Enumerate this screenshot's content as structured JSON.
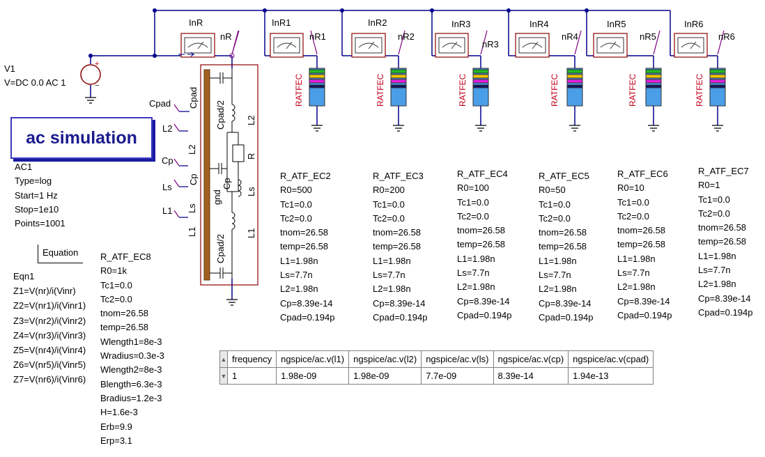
{
  "source": {
    "name": "V1",
    "value": "V=DC 0.0 AC 1"
  },
  "simulation": {
    "title": "ac simulation",
    "name": "AC1",
    "type": "Type=log",
    "start": "Start=1 Hz",
    "stop": "Stop=1e10",
    "points": "Points=1001"
  },
  "equation": {
    "header": "Equation",
    "name": "Eqn1",
    "lines": [
      "Z1=V(nr)/i(Vinr)",
      "Z2=V(nr1)/i(Vinr1)",
      "Z3=V(nr2)/i(Vinr2)",
      "Z4=V(nr3)/i(Vinr3)",
      "Z5=V(nr4)/i(Vinr4)",
      "Z6=V(nr5)/i(Vinr5)",
      "Z7=V(nr6)/i(Vinr6)"
    ]
  },
  "ammeters": [
    "InR",
    "InR1",
    "InR2",
    "InR3",
    "InR4",
    "InR5",
    "InR6"
  ],
  "nodes": [
    "nR",
    "nR1",
    "nR2",
    "nR3",
    "nR4",
    "nR5",
    "nR6"
  ],
  "resistor_label": "RATFEC",
  "model_labels": {
    "cpad_ext": "Cpad",
    "l2_ext": "L2",
    "cp_ext": "Cp",
    "ls_ext": "Ls",
    "l1_ext": "L1",
    "cpad_in": "Cpad",
    "l2_in": "L2",
    "cp_in": "Cp",
    "ls_in": "Ls",
    "l1_in": "L1",
    "cpad2_top": "Cpad/2",
    "l2_right": "L2",
    "r_right": "R",
    "cp_mid": "Cp",
    "ls_right": "Ls",
    "gnd": "gnd",
    "l1_right": "L1",
    "cpad2_bot": "Cpad/2"
  },
  "ec8": {
    "name": "R_ATF_EC8",
    "params": [
      "R0=1k",
      "Tc1=0.0",
      "Tc2=0.0",
      "tnom=26.58",
      "temp=26.58",
      "Wlength1=8e-3",
      "Wradius=0.3e-3",
      "Wlength2=8e-3",
      "Blength=6.3e-3",
      "Bradius=1.2e-3",
      "H=1.6e-3",
      "Erb=9.9",
      "Erp=3.1"
    ]
  },
  "resistor_blocks": [
    {
      "name": "R_ATF_EC2",
      "params": [
        "R0=500",
        "Tc1=0.0",
        "Tc2=0.0",
        "tnom=26.58",
        "temp=26.58",
        "L1=1.98n",
        "Ls=7.7n",
        "L2=1.98n",
        "Cp=8.39e-14",
        "Cpad=0.194p"
      ]
    },
    {
      "name": "R_ATF_EC3",
      "params": [
        "R0=200",
        "Tc1=0.0",
        "Tc2=0.0",
        "tnom=26.58",
        "temp=26.58",
        "L1=1.98n",
        "Ls=7.7n",
        "L2=1.98n",
        "Cp=8.39e-14",
        "Cpad=0.194p"
      ]
    },
    {
      "name": "R_ATF_EC4",
      "params": [
        "R0=100",
        "Tc1=0.0",
        "Tc2=0.0",
        "tnom=26.58",
        "temp=26.58",
        "L1=1.98n",
        "Ls=7.7n",
        "L2=1.98n",
        "Cp=8.39e-14",
        "Cpad=0.194p"
      ]
    },
    {
      "name": "R_ATF_EC5",
      "params": [
        "R0=50",
        "Tc1=0.0",
        "Tc2=0.0",
        "tnom=26.58",
        "temp=26.58",
        "L1=1.98n",
        "Ls=7.7n",
        "L2=1.98n",
        "Cp=8.39e-14",
        "Cpad=0.194p"
      ]
    },
    {
      "name": "R_ATF_EC6",
      "params": [
        "R0=10",
        "Tc1=0.0",
        "Tc2=0.0",
        "tnom=26.58",
        "temp=26.58",
        "L1=1.98n",
        "Ls=7.7n",
        "L2=1.98n",
        "Cp=8.39e-14",
        "Cpad=0.194p"
      ]
    },
    {
      "name": "R_ATF_EC7",
      "params": [
        "R0=1",
        "Tc1=0.0",
        "Tc2=0.0",
        "tnom=26.58",
        "temp=26.58",
        "L1=1.98n",
        "Ls=7.7n",
        "L2=1.98n",
        "Cp=8.39e-14",
        "Cpad=0.194p"
      ]
    }
  ],
  "table": {
    "headers": [
      "frequency",
      "ngspice/ac.v(l1)",
      "ngspice/ac.v(l2)",
      "ngspice/ac.v(ls)",
      "ngspice/ac.v(cp)",
      "ngspice/ac.v(cpad)"
    ],
    "row": [
      "1",
      "1.98e-09",
      "1.98e-09",
      "7.7e-09",
      "8.39e-14",
      "1.94e-13"
    ]
  },
  "colors": {
    "wire": "#00008b",
    "element": "#8b0000",
    "label_red": "#c0001a",
    "sim_title": "#1b1b8e"
  }
}
